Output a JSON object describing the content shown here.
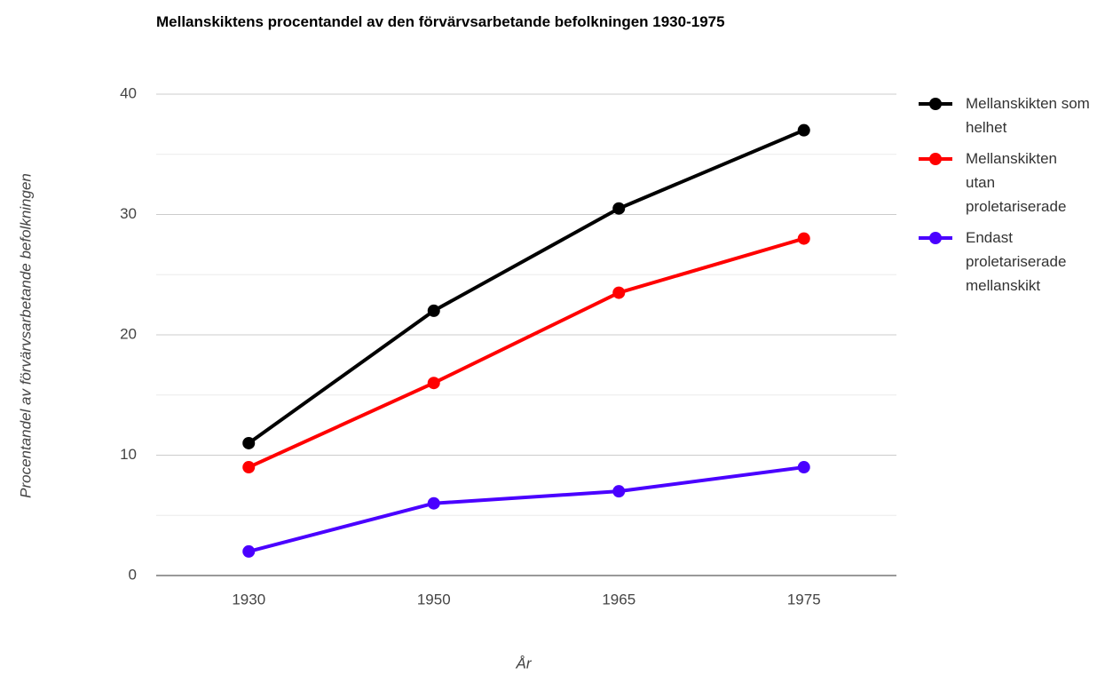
{
  "chart_data": {
    "type": "line",
    "title": "Mellanskiktens procentandel av den förvärvsarbetande befolkningen 1930-1975",
    "x_label": "År",
    "y_label": "Procentandel av förvärvsarbetande befolkningen",
    "categories": [
      "1930",
      "1950",
      "1965",
      "1975"
    ],
    "series": [
      {
        "name": "Mellanskikten som helhet",
        "color": "#000000",
        "values": [
          11,
          22,
          30.5,
          37
        ]
      },
      {
        "name": "Mellanskikten utan proletariserade",
        "color": "#ff0000",
        "values": [
          9,
          16,
          23.5,
          28
        ]
      },
      {
        "name": "Endast proletariserade mellanskikt",
        "color": "#4a00ff",
        "values": [
          2,
          6,
          7,
          9
        ]
      }
    ],
    "ylim": [
      0,
      40
    ],
    "yticks": [
      0,
      10,
      20,
      30,
      40
    ],
    "minor_gridlines": [
      5,
      15,
      25,
      35
    ],
    "grid": true,
    "legend": "right"
  }
}
